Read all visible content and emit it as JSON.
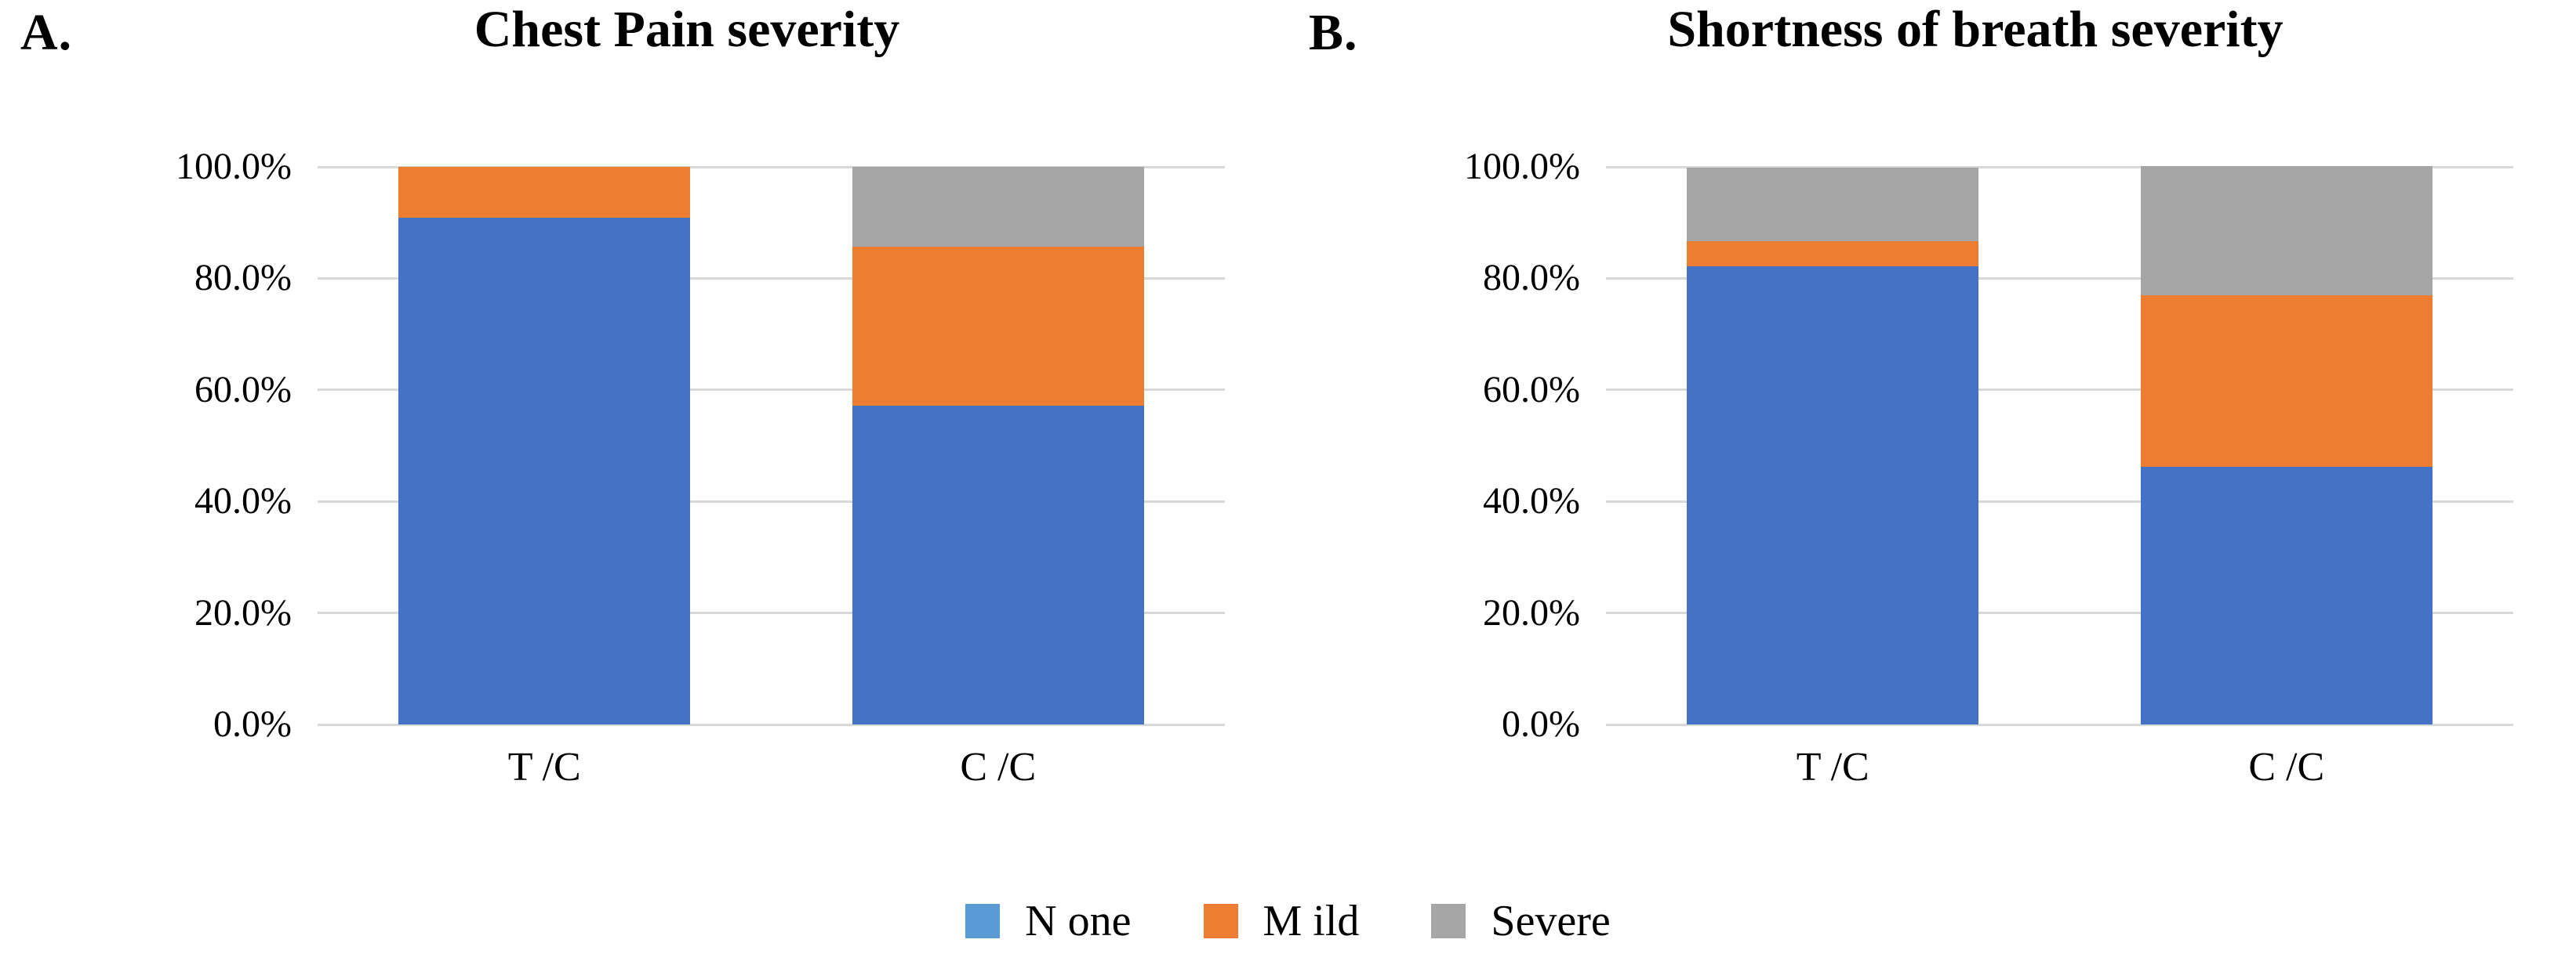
{
  "figure": {
    "background": "#FFFFFF",
    "panels": [
      {
        "id": "A",
        "label": "A.",
        "title": "Chest Pain severity",
        "x_categories": [
          "T /C",
          "C /C"
        ]
      },
      {
        "id": "B",
        "label": "B.",
        "title": "Shortness of breath severity",
        "x_categories": [
          "T /C",
          "C /C"
        ]
      }
    ]
  },
  "y_axis": {
    "tick_labels": [
      "100.0%",
      "80.0%",
      "60.0%",
      "40.0%",
      "20.0%",
      "0.0%"
    ],
    "min": 0,
    "max": 100,
    "gridlines": true
  },
  "legend": {
    "position": "bottom-center",
    "items": [
      {
        "label": "N one",
        "series": "None",
        "swatch_color": "#5B9BD5"
      },
      {
        "label": "M ild",
        "series": "Mild",
        "swatch_color": "#ED7D31"
      },
      {
        "label": "Severe",
        "series": "Severe",
        "swatch_color": "#A6A6A6"
      }
    ]
  },
  "colors": {
    "gridline": "#D9D9D9",
    "series_colors": {
      "None": "#4472C4",
      "Mild": "#ED7D31",
      "Severe": "#A5A5A5"
    }
  },
  "chart_data": [
    {
      "type": "bar",
      "stacked": true,
      "panel": "A",
      "title": "Chest Pain severity",
      "categories": [
        "T /C",
        "C /C"
      ],
      "series": [
        {
          "name": "None",
          "values": [
            90.9,
            57.1
          ]
        },
        {
          "name": "Mild",
          "values": [
            9.1,
            28.6
          ]
        },
        {
          "name": "Severe",
          "values": [
            0.0,
            14.3
          ]
        }
      ],
      "xlabel": "",
      "ylabel": "",
      "ylim": [
        0,
        100
      ],
      "ytick_format": "percent_one_decimal",
      "grid": true,
      "legend_position": "bottom"
    },
    {
      "type": "bar",
      "stacked": true,
      "panel": "B",
      "title": "Shortness of breath severity",
      "categories": [
        "T /C",
        "C /C"
      ],
      "series": [
        {
          "name": "None",
          "values": [
            82.2,
            46.2
          ]
        },
        {
          "name": "Mild",
          "values": [
            4.4,
            30.8
          ]
        },
        {
          "name": "Severe",
          "values": [
            13.3,
            23.1
          ]
        }
      ],
      "xlabel": "",
      "ylabel": "",
      "ylim": [
        0,
        100
      ],
      "ytick_format": "percent_one_decimal",
      "grid": true,
      "legend_position": "bottom"
    }
  ]
}
